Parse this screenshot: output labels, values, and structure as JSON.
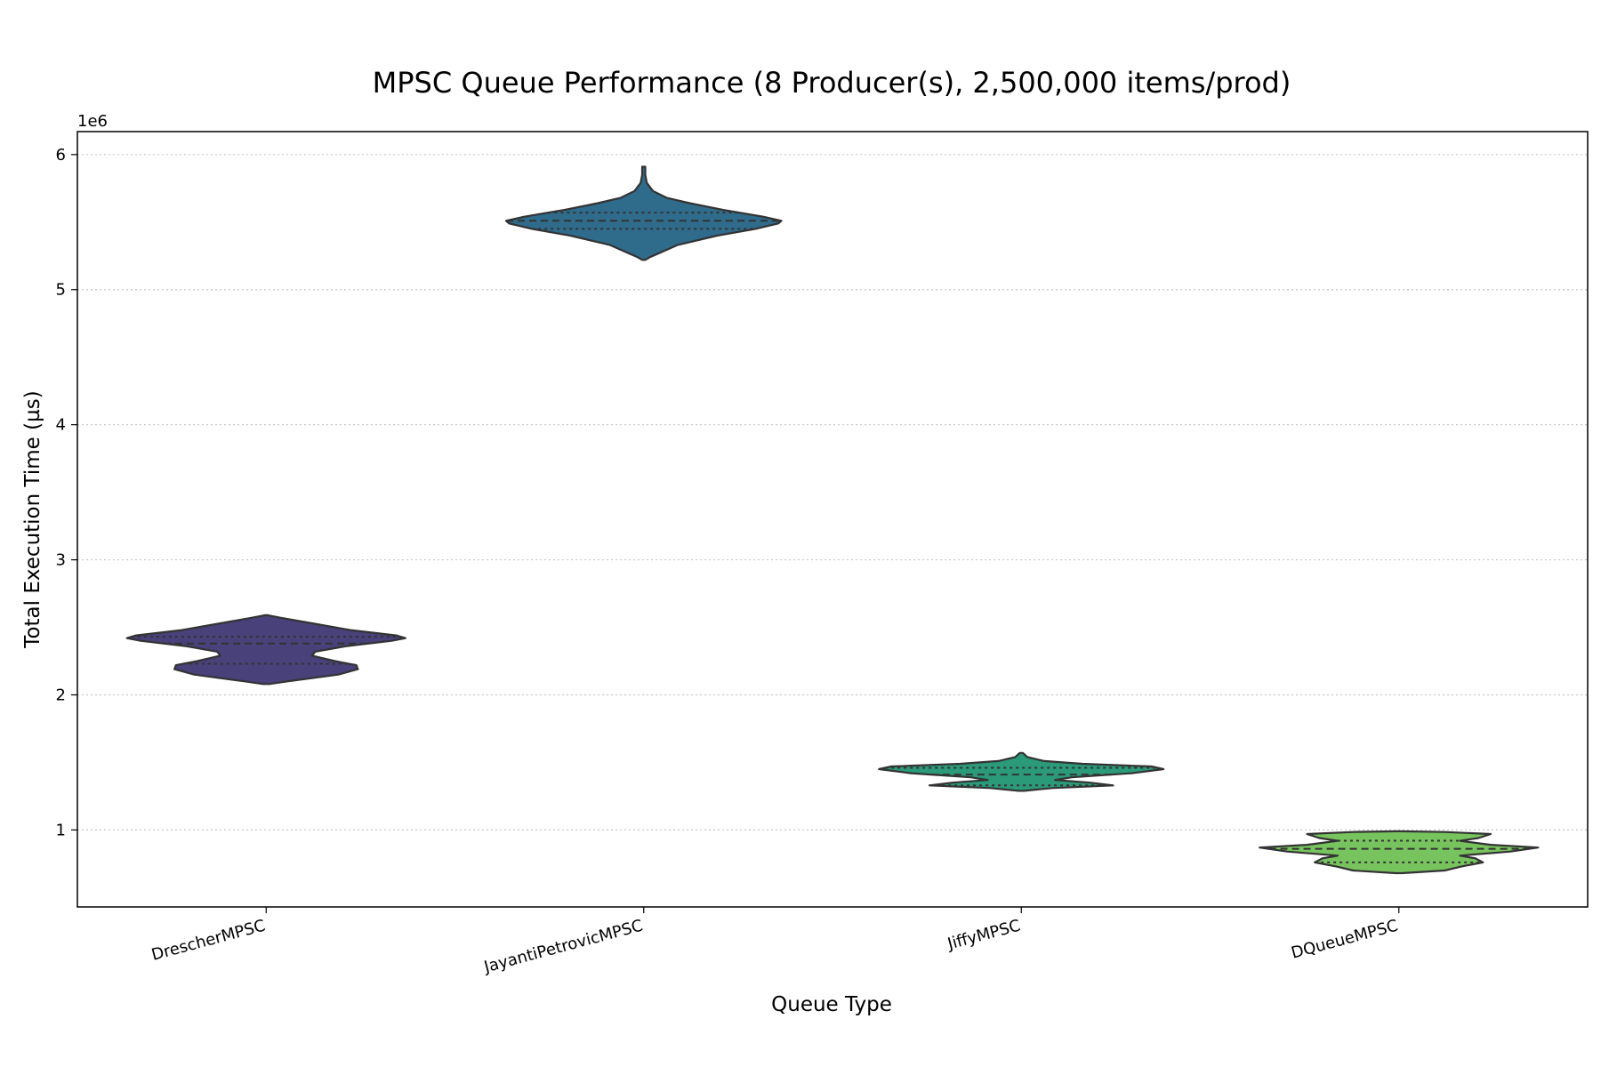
{
  "chart_data": {
    "type": "violin",
    "title": "MPSC Queue Performance (8 Producer(s), 2,500,000 items/prod)",
    "xlabel": "Queue Type",
    "ylabel": "Total Execution Time (µs)",
    "y_offset_label": "1e6",
    "y_scale": 1000000,
    "ylim": [
      430000,
      6170000
    ],
    "yticks": [
      1000000,
      2000000,
      3000000,
      4000000,
      5000000,
      6000000
    ],
    "ytick_labels": [
      "1",
      "2",
      "3",
      "4",
      "5",
      "6"
    ],
    "grid": "y-dotted",
    "inner": "quartile",
    "categories": [
      "DrescherMPSC",
      "JayantiPetrovicMPSC",
      "JiffyMPSC",
      "DQueueMPSC"
    ],
    "series": [
      {
        "category": "DrescherMPSC",
        "color": "#48417a",
        "min": 2080000,
        "max": 2590000,
        "q1": 2230000,
        "median": 2380000,
        "q3": 2430000,
        "profile": [
          [
            2080000,
            0.02
          ],
          [
            2100000,
            0.14
          ],
          [
            2150000,
            0.47
          ],
          [
            2190000,
            0.6
          ],
          [
            2220000,
            0.59
          ],
          [
            2250000,
            0.45
          ],
          [
            2290000,
            0.3
          ],
          [
            2320000,
            0.32
          ],
          [
            2360000,
            0.52
          ],
          [
            2400000,
            0.82
          ],
          [
            2420000,
            0.91
          ],
          [
            2440000,
            0.85
          ],
          [
            2480000,
            0.55
          ],
          [
            2530000,
            0.3
          ],
          [
            2570000,
            0.1
          ],
          [
            2590000,
            0.01
          ]
        ]
      },
      {
        "category": "JayantiPetrovicMPSC",
        "color": "#2f6b8a",
        "min": 5220000,
        "max": 5910000,
        "q1": 5450000,
        "median": 5510000,
        "q3": 5570000,
        "profile": [
          [
            5220000,
            0.01
          ],
          [
            5240000,
            0.04
          ],
          [
            5270000,
            0.1
          ],
          [
            5330000,
            0.22
          ],
          [
            5400000,
            0.48
          ],
          [
            5450000,
            0.73
          ],
          [
            5490000,
            0.88
          ],
          [
            5510000,
            0.9
          ],
          [
            5540000,
            0.78
          ],
          [
            5590000,
            0.52
          ],
          [
            5640000,
            0.3
          ],
          [
            5680000,
            0.15
          ],
          [
            5730000,
            0.06
          ],
          [
            5790000,
            0.02
          ],
          [
            5850000,
            0.01
          ],
          [
            5910000,
            0.01
          ]
        ]
      },
      {
        "category": "JiffyMPSC",
        "color": "#2a9a78",
        "min": 1290000,
        "max": 1570000,
        "q1": 1330000,
        "median": 1410000,
        "q3": 1460000,
        "profile": [
          [
            1290000,
            0.02
          ],
          [
            1310000,
            0.2
          ],
          [
            1330000,
            0.6
          ],
          [
            1350000,
            0.45
          ],
          [
            1370000,
            0.22
          ],
          [
            1390000,
            0.33
          ],
          [
            1420000,
            0.72
          ],
          [
            1450000,
            0.93
          ],
          [
            1470000,
            0.85
          ],
          [
            1490000,
            0.4
          ],
          [
            1510000,
            0.15
          ],
          [
            1540000,
            0.04
          ],
          [
            1570000,
            0.01
          ]
        ]
      },
      {
        "category": "DQueueMPSC",
        "color": "#77c45f",
        "min": 680000,
        "max": 990000,
        "q1": 760000,
        "median": 860000,
        "q3": 920000,
        "profile": [
          [
            680000,
            0.02
          ],
          [
            700000,
            0.3
          ],
          [
            730000,
            0.41
          ],
          [
            760000,
            0.55
          ],
          [
            790000,
            0.5
          ],
          [
            810000,
            0.4
          ],
          [
            840000,
            0.73
          ],
          [
            870000,
            0.91
          ],
          [
            890000,
            0.6
          ],
          [
            920000,
            0.4
          ],
          [
            940000,
            0.52
          ],
          [
            970000,
            0.6
          ],
          [
            985000,
            0.3
          ],
          [
            990000,
            0.01
          ]
        ]
      }
    ]
  }
}
